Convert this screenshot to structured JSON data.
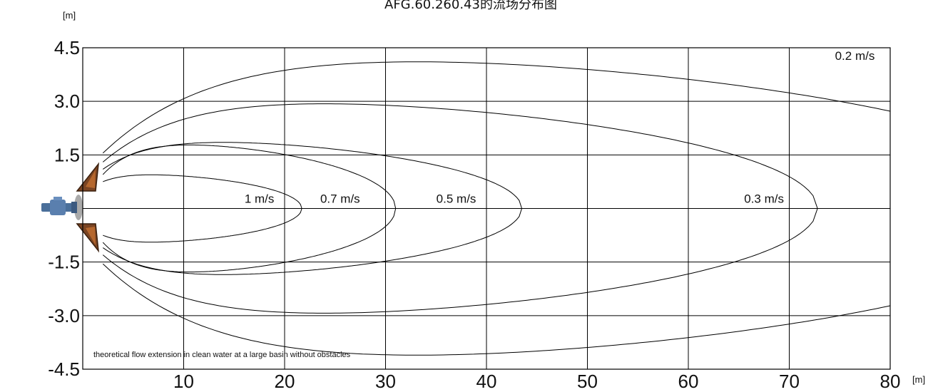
{
  "chart_data": {
    "type": "contour",
    "title": "AFG.60.260.43的流场分布图",
    "xlabel_unit": "[m]",
    "ylabel_unit": "[m]",
    "xlim": [
      0,
      80
    ],
    "ylim": [
      -4.5,
      4.5
    ],
    "x_ticks": [
      10,
      20,
      30,
      40,
      50,
      60,
      70,
      80
    ],
    "y_ticks": [
      4.5,
      3.0,
      1.5,
      0,
      -1.5,
      -3.0,
      -4.5
    ],
    "y_tick_labels": [
      "4.5",
      "3.0",
      "1.5",
      "",
      "-1.5",
      "-3.0",
      "-4.5"
    ],
    "grid": true,
    "note": "theoretical flow extension in clean water at a large basin without obstacles",
    "series": [
      {
        "name": "1 m/s",
        "reach": 21.7,
        "half_width": 1.0,
        "label_x": 17.5
      },
      {
        "name": "0.7 m/s",
        "reach": 31.0,
        "half_width": 1.93,
        "label_x": 25.5
      },
      {
        "name": "0.5 m/s",
        "reach": 43.5,
        "half_width": 2.0,
        "label_x": 37.0
      },
      {
        "name": "0.3 m/s",
        "reach": 72.8,
        "half_width": 3.2,
        "label_x": 67.5
      },
      {
        "name": "0.2 m/s",
        "reach": 100,
        "half_width": 4.5,
        "label_x": 76.5,
        "label_y": 4.0
      }
    ]
  }
}
